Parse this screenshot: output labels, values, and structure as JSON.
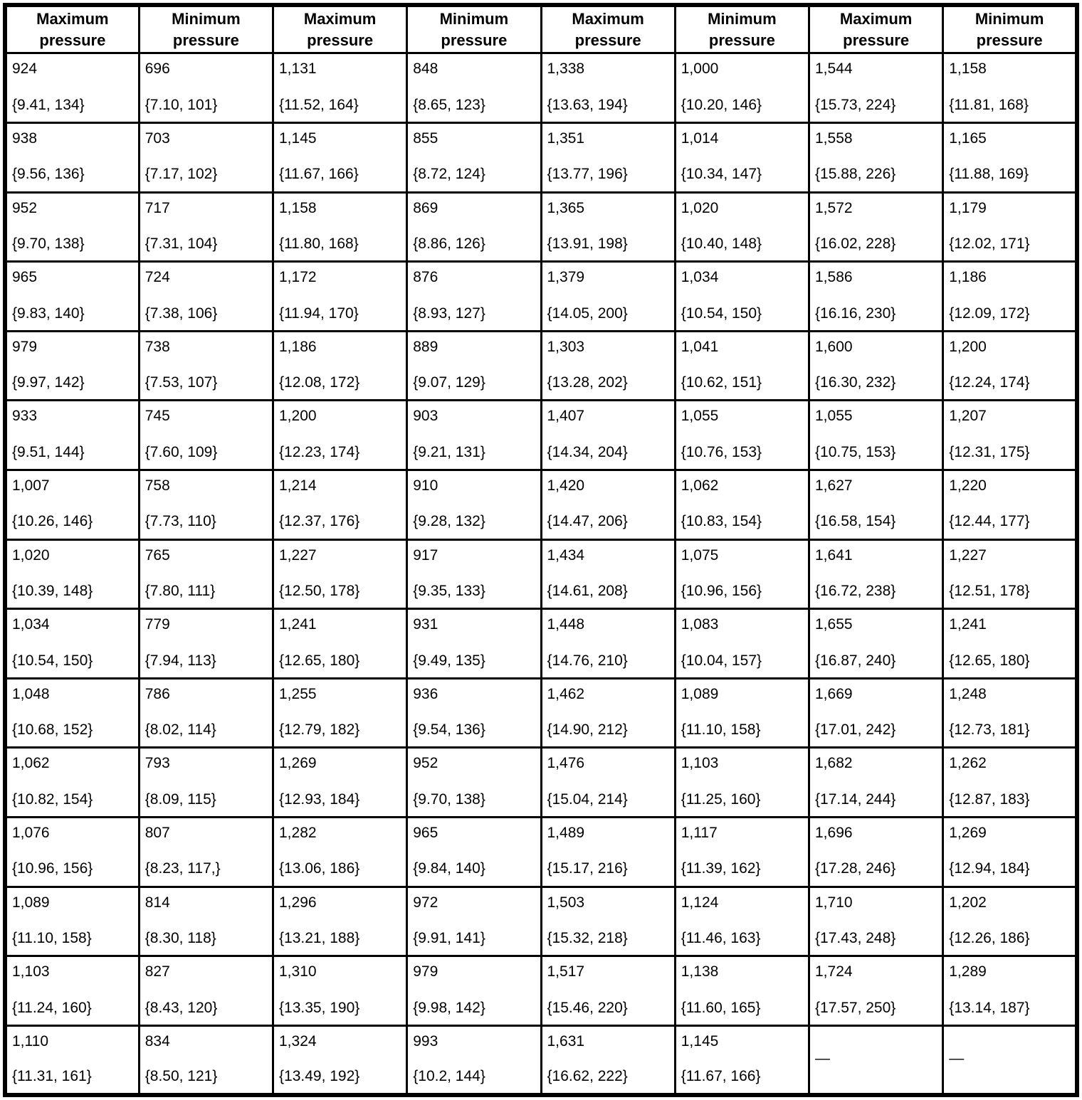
{
  "table": {
    "headers": [
      "Maximum\npressure",
      "Minimum\npressure",
      "Maximum\npressure",
      "Minimum\npressure",
      "Maximum\npressure",
      "Minimum\npressure",
      "Maximum\npressure",
      "Minimum\npressure"
    ],
    "rows": [
      [
        {
          "value": "924",
          "range": "{9.41, 134}"
        },
        {
          "value": "696",
          "range": "{7.10, 101}"
        },
        {
          "value": "1,131",
          "range": "{11.52, 164}"
        },
        {
          "value": "848",
          "range": "{8.65, 123}"
        },
        {
          "value": "1,338",
          "range": "{13.63, 194}"
        },
        {
          "value": "1,000",
          "range": "{10.20, 146}"
        },
        {
          "value": "1,544",
          "range": "{15.73, 224}"
        },
        {
          "value": "1,158",
          "range": "{11.81, 168}"
        }
      ],
      [
        {
          "value": "938",
          "range": "{9.56, 136}"
        },
        {
          "value": "703",
          "range": "{7.17, 102}"
        },
        {
          "value": "1,145",
          "range": "{11.67, 166}"
        },
        {
          "value": "855",
          "range": "{8.72, 124}"
        },
        {
          "value": "1,351",
          "range": "{13.77, 196}"
        },
        {
          "value": "1,014",
          "range": "{10.34, 147}"
        },
        {
          "value": "1,558",
          "range": "{15.88, 226}"
        },
        {
          "value": "1,165",
          "range": "{11.88, 169}"
        }
      ],
      [
        {
          "value": "952",
          "range": "{9.70, 138}"
        },
        {
          "value": "717",
          "range": "{7.31, 104}"
        },
        {
          "value": "1,158",
          "range": "{11.80, 168}"
        },
        {
          "value": "869",
          "range": "{8.86, 126}"
        },
        {
          "value": "1,365",
          "range": "{13.91, 198}"
        },
        {
          "value": "1,020",
          "range": "{10.40, 148}"
        },
        {
          "value": "1,572",
          "range": "{16.02, 228}"
        },
        {
          "value": "1,179",
          "range": "{12.02, 171}"
        }
      ],
      [
        {
          "value": "965",
          "range": "{9.83, 140}"
        },
        {
          "value": "724",
          "range": "{7.38, 106}"
        },
        {
          "value": "1,172",
          "range": "{11.94, 170}"
        },
        {
          "value": "876",
          "range": "{8.93, 127}"
        },
        {
          "value": "1,379",
          "range": "{14.05, 200}"
        },
        {
          "value": "1,034",
          "range": "{10.54, 150}"
        },
        {
          "value": "1,586",
          "range": "{16.16, 230}"
        },
        {
          "value": "1,186",
          "range": "{12.09, 172}"
        }
      ],
      [
        {
          "value": "979",
          "range": "{9.97, 142}"
        },
        {
          "value": "738",
          "range": "{7.53, 107}"
        },
        {
          "value": "1,186",
          "range": "{12.08, 172}"
        },
        {
          "value": "889",
          "range": "{9.07, 129}"
        },
        {
          "value": "1,303",
          "range": "{13.28, 202}"
        },
        {
          "value": "1,041",
          "range": "{10.62, 151}"
        },
        {
          "value": "1,600",
          "range": "{16.30, 232}"
        },
        {
          "value": "1,200",
          "range": "{12.24, 174}"
        }
      ],
      [
        {
          "value": "933",
          "range": "{9.51, 144}"
        },
        {
          "value": "745",
          "range": "{7.60, 109}"
        },
        {
          "value": "1,200",
          "range": "{12.23, 174}"
        },
        {
          "value": "903",
          "range": "{9.21, 131}"
        },
        {
          "value": "1,407",
          "range": "{14.34, 204}"
        },
        {
          "value": "1,055",
          "range": "{10.76, 153}"
        },
        {
          "value": "1,055",
          "range": "{10.75, 153}"
        },
        {
          "value": "1,207",
          "range": "{12.31, 175}"
        }
      ],
      [
        {
          "value": "1,007",
          "range": "{10.26, 146}"
        },
        {
          "value": "758",
          "range": "{7.73, 110}"
        },
        {
          "value": "1,214",
          "range": "{12.37, 176}"
        },
        {
          "value": "910",
          "range": "{9.28, 132}"
        },
        {
          "value": "1,420",
          "range": "{14.47, 206}"
        },
        {
          "value": "1,062",
          "range": "{10.83, 154}"
        },
        {
          "value": "1,627",
          "range": "{16.58, 154}"
        },
        {
          "value": "1,220",
          "range": "{12.44, 177}"
        }
      ],
      [
        {
          "value": "1,020",
          "range": "{10.39, 148}"
        },
        {
          "value": "765",
          "range": "{7.80, 111}"
        },
        {
          "value": "1,227",
          "range": "{12.50, 178}"
        },
        {
          "value": "917",
          "range": "{9.35, 133}"
        },
        {
          "value": "1,434",
          "range": "{14.61, 208}"
        },
        {
          "value": "1,075",
          "range": "{10.96, 156}"
        },
        {
          "value": "1,641",
          "range": "{16.72, 238}"
        },
        {
          "value": "1,227",
          "range": "{12.51, 178}"
        }
      ],
      [
        {
          "value": "1,034",
          "range": "{10.54, 150}"
        },
        {
          "value": "779",
          "range": "{7.94, 113}"
        },
        {
          "value": "1,241",
          "range": "{12.65, 180}"
        },
        {
          "value": "931",
          "range": "{9.49, 135}"
        },
        {
          "value": "1,448",
          "range": "{14.76, 210}"
        },
        {
          "value": "1,083",
          "range": "{10.04, 157}"
        },
        {
          "value": "1,655",
          "range": "{16.87, 240}"
        },
        {
          "value": "1,241",
          "range": "{12.65, 180}"
        }
      ],
      [
        {
          "value": "1,048",
          "range": "{10.68, 152}"
        },
        {
          "value": "786",
          "range": "{8.02, 114}"
        },
        {
          "value": "1,255",
          "range": "{12.79, 182}"
        },
        {
          "value": "936",
          "range": "{9.54, 136}"
        },
        {
          "value": "1,462",
          "range": "{14.90, 212}"
        },
        {
          "value": "1,089",
          "range": "{11.10, 158}"
        },
        {
          "value": "1,669",
          "range": "{17.01, 242}"
        },
        {
          "value": "1,248",
          "range": "{12.73, 181}"
        }
      ],
      [
        {
          "value": "1,062",
          "range": "{10.82, 154}"
        },
        {
          "value": "793",
          "range": "{8.09, 115}"
        },
        {
          "value": "1,269",
          "range": "{12.93, 184}"
        },
        {
          "value": "952",
          "range": "{9.70, 138}"
        },
        {
          "value": "1,476",
          "range": "{15.04, 214}"
        },
        {
          "value": "1,103",
          "range": "{11.25, 160}"
        },
        {
          "value": "1,682",
          "range": "{17.14, 244}"
        },
        {
          "value": "1,262",
          "range": "{12.87, 183}"
        }
      ],
      [
        {
          "value": "1,076",
          "range": "{10.96, 156}"
        },
        {
          "value": "807",
          "range": "{8.23, 117,}"
        },
        {
          "value": "1,282",
          "range": "{13.06, 186}"
        },
        {
          "value": "965",
          "range": "{9.84, 140}"
        },
        {
          "value": "1,489",
          "range": "{15.17, 216}"
        },
        {
          "value": "1,117",
          "range": "{11.39, 162}"
        },
        {
          "value": "1,696",
          "range": "{17.28, 246}"
        },
        {
          "value": "1,269",
          "range": "{12.94, 184}"
        }
      ],
      [
        {
          "value": "1,089",
          "range": "{11.10, 158}"
        },
        {
          "value": "814",
          "range": "{8.30, 118}"
        },
        {
          "value": "1,296",
          "range": "{13.21, 188}"
        },
        {
          "value": "972",
          "range": "{9.91, 141}"
        },
        {
          "value": "1,503",
          "range": "{15.32, 218}"
        },
        {
          "value": "1,124",
          "range": "{11.46, 163}"
        },
        {
          "value": "1,710",
          "range": "{17.43, 248}"
        },
        {
          "value": "1,202",
          "range": "{12.26, 186}"
        }
      ],
      [
        {
          "value": "1,103",
          "range": "{11.24, 160}"
        },
        {
          "value": "827",
          "range": "{8.43, 120}"
        },
        {
          "value": "1,310",
          "range": "{13.35, 190}"
        },
        {
          "value": "979",
          "range": "{9.98, 142}"
        },
        {
          "value": "1,517",
          "range": "{15.46, 220}"
        },
        {
          "value": "1,138",
          "range": "{11.60, 165}"
        },
        {
          "value": "1,724",
          "range": "{17.57, 250}"
        },
        {
          "value": "1,289",
          "range": "{13.14, 187}"
        }
      ],
      [
        {
          "value": "1,110",
          "range": "{11.31, 161}"
        },
        {
          "value": "834",
          "range": "{8.50, 121}"
        },
        {
          "value": "1,324",
          "range": "{13.49, 192}"
        },
        {
          "value": "993",
          "range": "{10.2, 144}"
        },
        {
          "value": "1,631",
          "range": "{16.62, 222}"
        },
        {
          "value": "1,145",
          "range": "{11.67, 166}"
        },
        {
          "value": "—",
          "range": ""
        },
        {
          "value": "—",
          "range": ""
        }
      ]
    ]
  }
}
